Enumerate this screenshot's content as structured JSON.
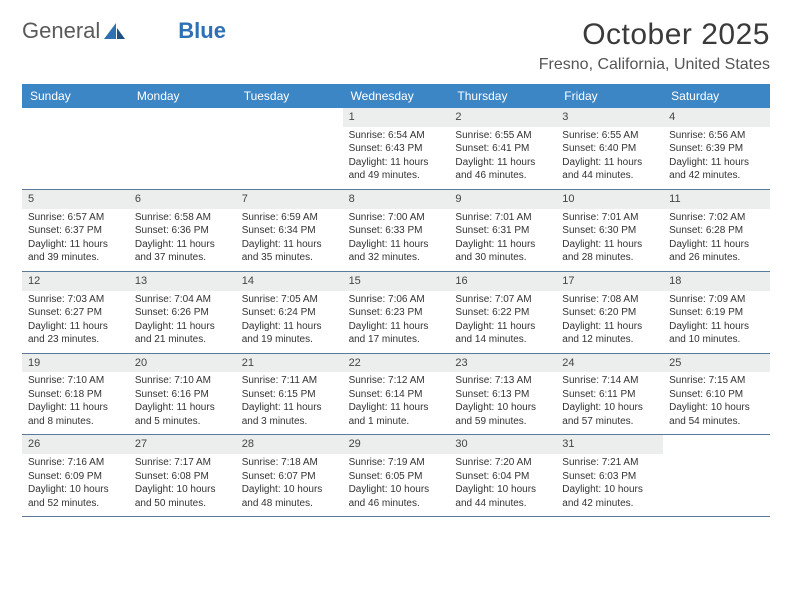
{
  "brand": {
    "part1": "General",
    "part2": "Blue"
  },
  "title": "October 2025",
  "location": "Fresno, California, United States",
  "colors": {
    "header_bar": "#3d86c6",
    "week_divider": "#5b7a9a",
    "daynum_bg": "#eceded",
    "text": "#333333",
    "brand_gray": "#5a5a5a",
    "brand_blue": "#2f6fb3",
    "background": "#ffffff"
  },
  "day_names": [
    "Sunday",
    "Monday",
    "Tuesday",
    "Wednesday",
    "Thursday",
    "Friday",
    "Saturday"
  ],
  "weeks": [
    [
      {
        "day": "",
        "lines": [
          "",
          "",
          "",
          ""
        ]
      },
      {
        "day": "",
        "lines": [
          "",
          "",
          "",
          ""
        ]
      },
      {
        "day": "",
        "lines": [
          "",
          "",
          "",
          ""
        ]
      },
      {
        "day": "1",
        "lines": [
          "Sunrise: 6:54 AM",
          "Sunset: 6:43 PM",
          "Daylight: 11 hours",
          "and 49 minutes."
        ]
      },
      {
        "day": "2",
        "lines": [
          "Sunrise: 6:55 AM",
          "Sunset: 6:41 PM",
          "Daylight: 11 hours",
          "and 46 minutes."
        ]
      },
      {
        "day": "3",
        "lines": [
          "Sunrise: 6:55 AM",
          "Sunset: 6:40 PM",
          "Daylight: 11 hours",
          "and 44 minutes."
        ]
      },
      {
        "day": "4",
        "lines": [
          "Sunrise: 6:56 AM",
          "Sunset: 6:39 PM",
          "Daylight: 11 hours",
          "and 42 minutes."
        ]
      }
    ],
    [
      {
        "day": "5",
        "lines": [
          "Sunrise: 6:57 AM",
          "Sunset: 6:37 PM",
          "Daylight: 11 hours",
          "and 39 minutes."
        ]
      },
      {
        "day": "6",
        "lines": [
          "Sunrise: 6:58 AM",
          "Sunset: 6:36 PM",
          "Daylight: 11 hours",
          "and 37 minutes."
        ]
      },
      {
        "day": "7",
        "lines": [
          "Sunrise: 6:59 AM",
          "Sunset: 6:34 PM",
          "Daylight: 11 hours",
          "and 35 minutes."
        ]
      },
      {
        "day": "8",
        "lines": [
          "Sunrise: 7:00 AM",
          "Sunset: 6:33 PM",
          "Daylight: 11 hours",
          "and 32 minutes."
        ]
      },
      {
        "day": "9",
        "lines": [
          "Sunrise: 7:01 AM",
          "Sunset: 6:31 PM",
          "Daylight: 11 hours",
          "and 30 minutes."
        ]
      },
      {
        "day": "10",
        "lines": [
          "Sunrise: 7:01 AM",
          "Sunset: 6:30 PM",
          "Daylight: 11 hours",
          "and 28 minutes."
        ]
      },
      {
        "day": "11",
        "lines": [
          "Sunrise: 7:02 AM",
          "Sunset: 6:28 PM",
          "Daylight: 11 hours",
          "and 26 minutes."
        ]
      }
    ],
    [
      {
        "day": "12",
        "lines": [
          "Sunrise: 7:03 AM",
          "Sunset: 6:27 PM",
          "Daylight: 11 hours",
          "and 23 minutes."
        ]
      },
      {
        "day": "13",
        "lines": [
          "Sunrise: 7:04 AM",
          "Sunset: 6:26 PM",
          "Daylight: 11 hours",
          "and 21 minutes."
        ]
      },
      {
        "day": "14",
        "lines": [
          "Sunrise: 7:05 AM",
          "Sunset: 6:24 PM",
          "Daylight: 11 hours",
          "and 19 minutes."
        ]
      },
      {
        "day": "15",
        "lines": [
          "Sunrise: 7:06 AM",
          "Sunset: 6:23 PM",
          "Daylight: 11 hours",
          "and 17 minutes."
        ]
      },
      {
        "day": "16",
        "lines": [
          "Sunrise: 7:07 AM",
          "Sunset: 6:22 PM",
          "Daylight: 11 hours",
          "and 14 minutes."
        ]
      },
      {
        "day": "17",
        "lines": [
          "Sunrise: 7:08 AM",
          "Sunset: 6:20 PM",
          "Daylight: 11 hours",
          "and 12 minutes."
        ]
      },
      {
        "day": "18",
        "lines": [
          "Sunrise: 7:09 AM",
          "Sunset: 6:19 PM",
          "Daylight: 11 hours",
          "and 10 minutes."
        ]
      }
    ],
    [
      {
        "day": "19",
        "lines": [
          "Sunrise: 7:10 AM",
          "Sunset: 6:18 PM",
          "Daylight: 11 hours",
          "and 8 minutes."
        ]
      },
      {
        "day": "20",
        "lines": [
          "Sunrise: 7:10 AM",
          "Sunset: 6:16 PM",
          "Daylight: 11 hours",
          "and 5 minutes."
        ]
      },
      {
        "day": "21",
        "lines": [
          "Sunrise: 7:11 AM",
          "Sunset: 6:15 PM",
          "Daylight: 11 hours",
          "and 3 minutes."
        ]
      },
      {
        "day": "22",
        "lines": [
          "Sunrise: 7:12 AM",
          "Sunset: 6:14 PM",
          "Daylight: 11 hours",
          "and 1 minute."
        ]
      },
      {
        "day": "23",
        "lines": [
          "Sunrise: 7:13 AM",
          "Sunset: 6:13 PM",
          "Daylight: 10 hours",
          "and 59 minutes."
        ]
      },
      {
        "day": "24",
        "lines": [
          "Sunrise: 7:14 AM",
          "Sunset: 6:11 PM",
          "Daylight: 10 hours",
          "and 57 minutes."
        ]
      },
      {
        "day": "25",
        "lines": [
          "Sunrise: 7:15 AM",
          "Sunset: 6:10 PM",
          "Daylight: 10 hours",
          "and 54 minutes."
        ]
      }
    ],
    [
      {
        "day": "26",
        "lines": [
          "Sunrise: 7:16 AM",
          "Sunset: 6:09 PM",
          "Daylight: 10 hours",
          "and 52 minutes."
        ]
      },
      {
        "day": "27",
        "lines": [
          "Sunrise: 7:17 AM",
          "Sunset: 6:08 PM",
          "Daylight: 10 hours",
          "and 50 minutes."
        ]
      },
      {
        "day": "28",
        "lines": [
          "Sunrise: 7:18 AM",
          "Sunset: 6:07 PM",
          "Daylight: 10 hours",
          "and 48 minutes."
        ]
      },
      {
        "day": "29",
        "lines": [
          "Sunrise: 7:19 AM",
          "Sunset: 6:05 PM",
          "Daylight: 10 hours",
          "and 46 minutes."
        ]
      },
      {
        "day": "30",
        "lines": [
          "Sunrise: 7:20 AM",
          "Sunset: 6:04 PM",
          "Daylight: 10 hours",
          "and 44 minutes."
        ]
      },
      {
        "day": "31",
        "lines": [
          "Sunrise: 7:21 AM",
          "Sunset: 6:03 PM",
          "Daylight: 10 hours",
          "and 42 minutes."
        ]
      },
      {
        "day": "",
        "lines": [
          "",
          "",
          "",
          ""
        ]
      }
    ]
  ]
}
